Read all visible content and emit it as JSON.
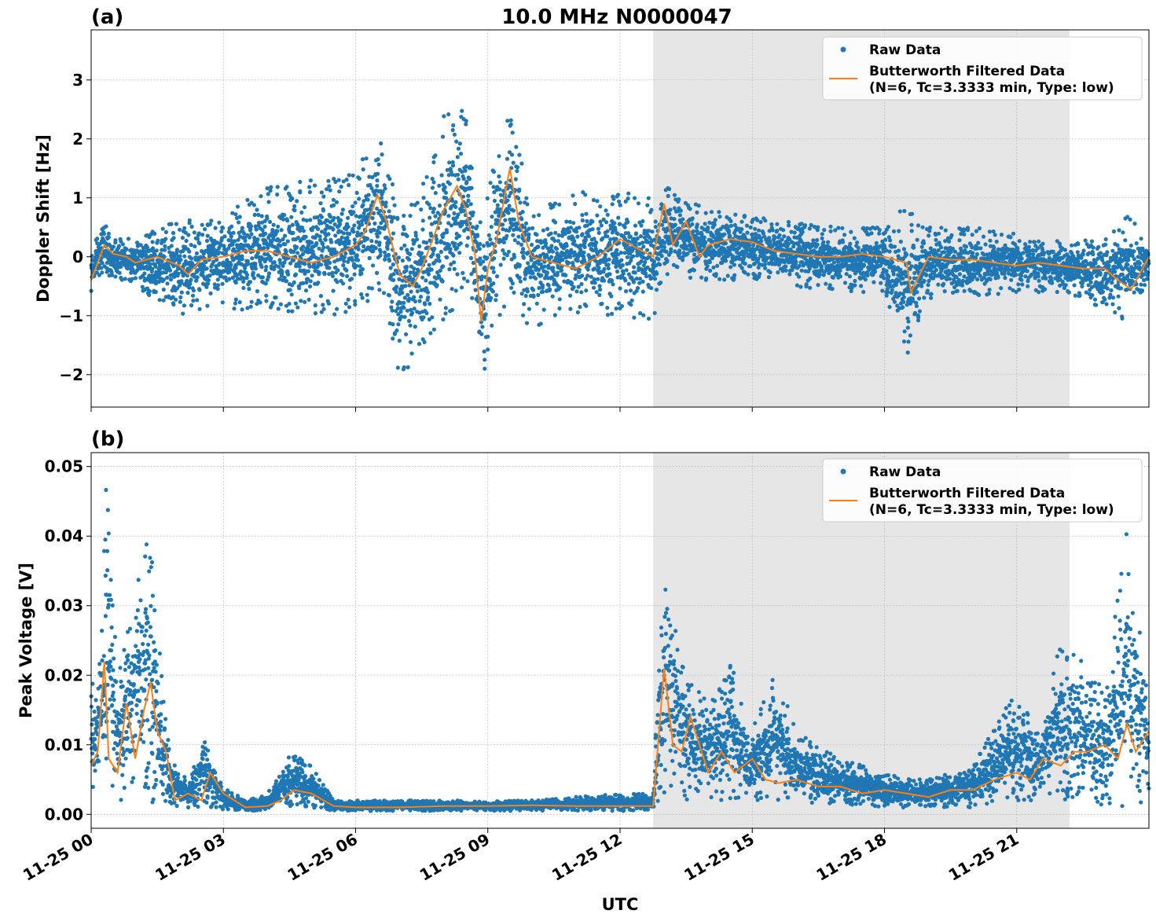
{
  "figure": {
    "title": "10.0 MHz N0000047",
    "xlabel": "UTC"
  },
  "colors": {
    "raw": "#1f77b4",
    "filtered": "#ff7f0e",
    "shade": "#e6e6e6",
    "grid": "#b0b0b0"
  },
  "legend": {
    "raw_label": "Raw Data",
    "filt_label_1": "Butterworth Filtered Data",
    "filt_label_2": "(N=6, Tc=3.3333 min, Type: low)"
  },
  "chart_data": [
    {
      "type": "scatter",
      "panel_label": "(a)",
      "ylabel": "Doppler Shift [Hz]",
      "x_unit": "hours UTC since 11-25 00:00",
      "xlim": [
        0,
        24
      ],
      "ylim": [
        -2.55,
        3.85
      ],
      "yticks": [
        -2,
        -1,
        0,
        1,
        2,
        3
      ],
      "ytick_labels": [
        "−2",
        "−1",
        "0",
        "1",
        "2",
        "3"
      ],
      "xticks": [
        0,
        3,
        6,
        9,
        12,
        15,
        18,
        21
      ],
      "xtick_labels": [
        "11-25 00",
        "11-25 03",
        "11-25 06",
        "11-25 09",
        "11-25 12",
        "11-25 15",
        "11-25 18",
        "11-25 21"
      ],
      "grid": true,
      "legend_position": "top-right",
      "shaded_region": [
        12.75,
        22.2
      ],
      "series": [
        {
          "name": "Raw Data",
          "style": "points",
          "envelope_x": [
            0,
            0.3,
            0.5,
            1,
            2,
            3,
            4,
            5,
            6,
            6.5,
            7,
            7.5,
            8,
            8.5,
            8.9,
            9,
            9.5,
            10,
            11,
            12,
            12.75,
            13,
            14,
            15,
            16,
            17,
            18,
            18.5,
            19,
            20,
            21,
            22,
            23,
            23.5,
            24
          ],
          "envelope_hi": [
            0.1,
            0.6,
            0.3,
            0.4,
            0.6,
            0.7,
            1.2,
            1.3,
            1.5,
            2.4,
            0.8,
            1.2,
            2.4,
            2.5,
            0.4,
            1.5,
            2.6,
            0.9,
            1.1,
            1.1,
            1.0,
            1.2,
            0.8,
            0.7,
            0.6,
            0.5,
            0.5,
            0.9,
            0.5,
            0.5,
            0.4,
            0.3,
            0.3,
            0.8,
            0.2
          ],
          "envelope_lo": [
            -0.6,
            -0.3,
            -0.4,
            -0.5,
            -1.0,
            -0.9,
            -0.9,
            -1.0,
            -1.0,
            -0.6,
            -2.0,
            -1.7,
            -1.2,
            -0.5,
            -2.2,
            -1.7,
            -0.7,
            -1.3,
            -1.0,
            -1.0,
            -1.1,
            -0.3,
            -0.4,
            -0.4,
            -0.5,
            -0.6,
            -0.6,
            -1.8,
            -0.7,
            -0.7,
            -0.6,
            -0.6,
            -0.9,
            -1.1,
            -0.4
          ]
        },
        {
          "name": "Butterworth Filtered Data",
          "style": "line",
          "x": [
            0,
            0.3,
            0.5,
            0.8,
            1,
            1.5,
            2,
            2.2,
            2.5,
            3,
            3.5,
            4,
            4.5,
            5,
            5.5,
            6,
            6.2,
            6.5,
            6.7,
            7,
            7.3,
            7.5,
            7.8,
            8,
            8.3,
            8.5,
            8.7,
            8.85,
            9,
            9.2,
            9.5,
            9.7,
            10,
            10.5,
            11,
            11.5,
            12,
            12.5,
            12.75,
            13,
            13.2,
            13.5,
            13.8,
            14,
            14.5,
            15,
            15.5,
            16,
            16.5,
            17,
            17.5,
            18,
            18.5,
            18.6,
            19,
            19.5,
            20,
            20.5,
            21,
            21.5,
            22,
            22.5,
            23,
            23.3,
            23.6,
            24
          ],
          "y": [
            -0.4,
            0.2,
            0.05,
            0.0,
            -0.1,
            0.0,
            -0.15,
            -0.3,
            -0.05,
            0.0,
            0.1,
            0.1,
            0.0,
            -0.1,
            0.0,
            0.2,
            0.4,
            1.05,
            0.6,
            -0.3,
            -0.5,
            -0.2,
            0.4,
            0.8,
            1.2,
            0.8,
            0.1,
            -1.1,
            -0.2,
            0.3,
            1.5,
            0.6,
            0.0,
            -0.1,
            -0.2,
            0.0,
            0.3,
            0.1,
            0.0,
            0.9,
            0.2,
            0.6,
            0.0,
            0.2,
            0.3,
            0.25,
            0.1,
            0.05,
            0.0,
            0.0,
            0.05,
            0.0,
            -0.1,
            -0.6,
            0.0,
            -0.05,
            -0.05,
            -0.1,
            -0.15,
            -0.1,
            -0.15,
            -0.2,
            -0.2,
            -0.4,
            -0.55,
            0.0
          ]
        }
      ]
    },
    {
      "type": "scatter",
      "panel_label": "(b)",
      "ylabel": "Peak Voltage [V]",
      "x_unit": "hours UTC since 11-25 00:00",
      "xlim": [
        0,
        24
      ],
      "ylim": [
        -0.002,
        0.052
      ],
      "yticks": [
        0.0,
        0.01,
        0.02,
        0.03,
        0.04,
        0.05
      ],
      "ytick_labels": [
        "0.00",
        "0.01",
        "0.02",
        "0.03",
        "0.04",
        "0.05"
      ],
      "xticks": [
        0,
        3,
        6,
        9,
        12,
        15,
        18,
        21
      ],
      "xtick_labels": [
        "11-25 00",
        "11-25 03",
        "11-25 06",
        "11-25 09",
        "11-25 12",
        "11-25 15",
        "11-25 18",
        "11-25 21"
      ],
      "grid": true,
      "legend_position": "top-right",
      "shaded_region": [
        12.75,
        22.2
      ],
      "series": [
        {
          "name": "Raw Data",
          "style": "points",
          "envelope_x": [
            0,
            0.2,
            0.35,
            0.6,
            1,
            1.3,
            1.6,
            1.8,
            2.2,
            2.6,
            3,
            3.5,
            4,
            4.5,
            5,
            5.5,
            6,
            8,
            10,
            12,
            12.75,
            13,
            13.5,
            14,
            14.5,
            15,
            15.5,
            16,
            17,
            18,
            19,
            20,
            21,
            21.5,
            22,
            23,
            23.5,
            24
          ],
          "envelope_hi": [
            0.018,
            0.025,
            0.049,
            0.02,
            0.034,
            0.043,
            0.02,
            0.008,
            0.005,
            0.012,
            0.004,
            0.002,
            0.003,
            0.009,
            0.007,
            0.002,
            0.002,
            0.002,
            0.002,
            0.003,
            0.003,
            0.04,
            0.02,
            0.016,
            0.022,
            0.012,
            0.021,
            0.012,
            0.008,
            0.006,
            0.005,
            0.007,
            0.018,
            0.012,
            0.026,
            0.018,
            0.041,
            0.02
          ],
          "envelope_lo": [
            0.002,
            0.002,
            0.003,
            0.002,
            0.002,
            0.002,
            0.001,
            0.001,
            0.001,
            0.001,
            0.0005,
            0.0005,
            0.0005,
            0.001,
            0.001,
            0.0005,
            0.0005,
            0.0005,
            0.0005,
            0.0005,
            0.0005,
            0.002,
            0.002,
            0.002,
            0.002,
            0.002,
            0.002,
            0.0015,
            0.0015,
            0.001,
            0.001,
            0.001,
            0.002,
            0.002,
            0.002,
            0.001,
            0.001,
            0.002
          ]
        },
        {
          "name": "Butterworth Filtered Data",
          "style": "line",
          "x": [
            0,
            0.15,
            0.3,
            0.4,
            0.6,
            0.8,
            1,
            1.2,
            1.35,
            1.5,
            1.7,
            1.9,
            2.2,
            2.5,
            2.7,
            3,
            3.5,
            4,
            4.3,
            4.6,
            5,
            5.5,
            6,
            7,
            8,
            9,
            10,
            11,
            12,
            12.5,
            12.75,
            13,
            13.2,
            13.4,
            13.6,
            14,
            14.3,
            14.6,
            15,
            15.3,
            15.6,
            16,
            16.5,
            17,
            17.5,
            18,
            18.5,
            19,
            19.5,
            20,
            20.5,
            21,
            21.3,
            21.6,
            22,
            22.3,
            22.6,
            23,
            23.3,
            23.5,
            23.7,
            24
          ],
          "y": [
            0.007,
            0.009,
            0.022,
            0.008,
            0.006,
            0.016,
            0.008,
            0.015,
            0.019,
            0.012,
            0.009,
            0.002,
            0.003,
            0.002,
            0.006,
            0.003,
            0.001,
            0.0012,
            0.002,
            0.0035,
            0.003,
            0.0012,
            0.001,
            0.001,
            0.0012,
            0.0012,
            0.0013,
            0.0012,
            0.0012,
            0.0012,
            0.0012,
            0.021,
            0.01,
            0.009,
            0.014,
            0.006,
            0.009,
            0.006,
            0.008,
            0.005,
            0.0045,
            0.005,
            0.004,
            0.004,
            0.003,
            0.0035,
            0.003,
            0.0025,
            0.0035,
            0.0035,
            0.005,
            0.006,
            0.005,
            0.008,
            0.007,
            0.009,
            0.009,
            0.01,
            0.008,
            0.013,
            0.009,
            0.012
          ]
        }
      ]
    }
  ]
}
